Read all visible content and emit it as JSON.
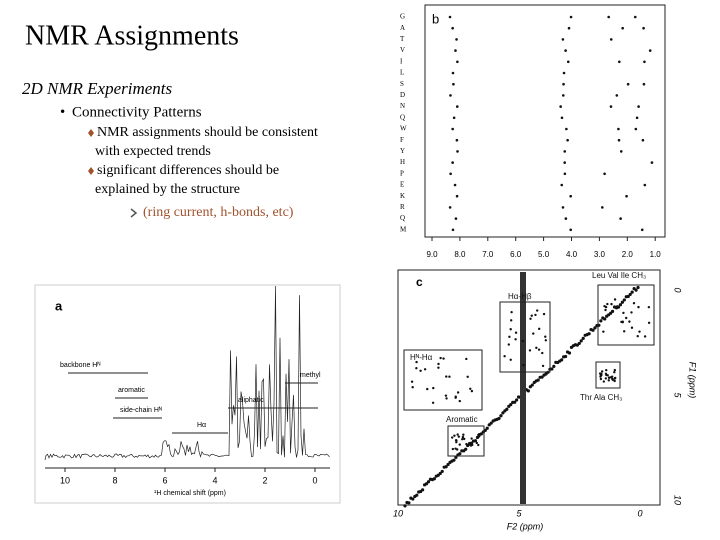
{
  "title": "NMR Assignments",
  "subtitle": "2D NMR Experiments",
  "bullets": {
    "main": "Connectivity Patterns",
    "items": [
      "NMR assignments should be consistent with expected trends",
      "significant differences should be explained by the structure"
    ],
    "subitem": "(ring current, h-bonds, etc)"
  },
  "figure_b": {
    "label": "b",
    "residues": [
      "G",
      "A",
      "T",
      "V",
      "I",
      "L",
      "S",
      "D",
      "N",
      "Q",
      "W",
      "F",
      "Y",
      "H",
      "P",
      "E",
      "K",
      "R",
      "Q",
      "M"
    ],
    "xticks": [
      "9.0",
      "8.0",
      "7.0",
      "6.0",
      "5.0",
      "4.0",
      "3.0",
      "2.0",
      "1.0"
    ]
  },
  "figure_a": {
    "label": "a",
    "regions": [
      "backbone Hᴺ",
      "aromatic",
      "side-chain Hᴺ",
      "Hα",
      "aliphatic",
      "methyl"
    ],
    "xticks": [
      "10",
      "8",
      "6",
      "4",
      "2",
      "0"
    ],
    "xlabel": "¹H chemical shift (ppm)"
  },
  "figure_c": {
    "label": "c",
    "regions": [
      "Leu Val Ile CH₃",
      "Hα-Hβ",
      "Hᴺ-Hα",
      "Thr Ala CH₃",
      "Aromatic"
    ],
    "xticks": [
      "10",
      "5",
      "0"
    ],
    "xlabel": "F2 (ppm)",
    "yticks": [
      "0",
      "5",
      "10"
    ],
    "ylabel": "F1 (ppm)"
  }
}
